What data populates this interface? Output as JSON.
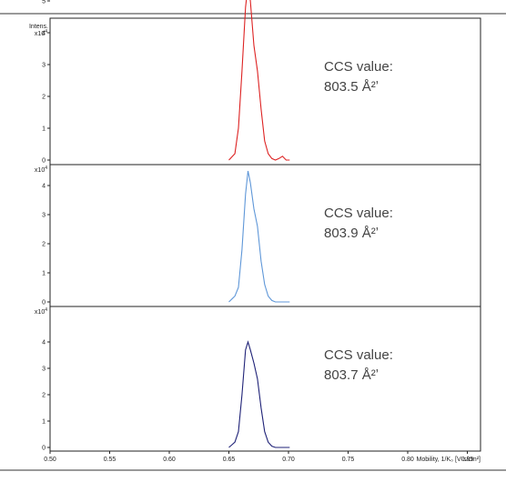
{
  "chart_data": {
    "type": "line",
    "xlabel": "Mobility, 1/K₀ [V·s/cm²]",
    "ylabel": "Intens.",
    "y_multiplier": "x10",
    "y_multiplier_exp": "4",
    "xlim": [
      0.5,
      0.7
    ],
    "x_ticks": [
      "0.50",
      "0.55",
      "0.60",
      "0.65",
      "0.70",
      "0.75",
      "0.80",
      "0.85"
    ],
    "panels": [
      {
        "color": "#dd2222",
        "ylim": [
          0,
          5.7
        ],
        "y_ticks": [
          "0",
          "1",
          "2",
          "3",
          "4",
          "5"
        ],
        "ccs_label": "CCS value:",
        "ccs_value": "803.5 Å²ʼ",
        "x": [
          0.65,
          0.655,
          0.658,
          0.661,
          0.664,
          0.666,
          0.668,
          0.671,
          0.674,
          0.677,
          0.68,
          0.683,
          0.686,
          0.689,
          0.692,
          0.695,
          0.698,
          0.701
        ],
        "y": [
          0,
          0.2,
          1.0,
          2.8,
          4.8,
          5.5,
          5.0,
          3.6,
          2.8,
          1.6,
          0.6,
          0.2,
          0.05,
          0.0,
          0.05,
          0.12,
          0.0,
          0.0
        ]
      },
      {
        "color": "#5f97d8",
        "ylim": [
          0,
          4.7
        ],
        "y_ticks": [
          "0",
          "1",
          "2",
          "3",
          "4"
        ],
        "ccs_label": "CCS value:",
        "ccs_value": "803.9 Å²ʼ",
        "x": [
          0.65,
          0.655,
          0.658,
          0.661,
          0.664,
          0.666,
          0.668,
          0.671,
          0.674,
          0.677,
          0.68,
          0.683,
          0.686,
          0.689,
          0.692,
          0.697,
          0.701
        ],
        "y": [
          0,
          0.2,
          0.5,
          1.8,
          3.7,
          4.5,
          4.1,
          3.2,
          2.6,
          1.4,
          0.6,
          0.2,
          0.05,
          0.0,
          0.0,
          0.0,
          0.0
        ]
      },
      {
        "color": "#1f2277",
        "ylim": [
          0,
          4.7
        ],
        "y_ticks": [
          "0",
          "1",
          "2",
          "3",
          "4"
        ],
        "ccs_label": "CCS value:",
        "ccs_value": "803.7 Å²ʼ",
        "x": [
          0.65,
          0.655,
          0.658,
          0.661,
          0.664,
          0.666,
          0.668,
          0.671,
          0.674,
          0.677,
          0.68,
          0.683,
          0.686,
          0.689,
          0.692,
          0.697,
          0.701
        ],
        "y": [
          0,
          0.2,
          0.6,
          2.0,
          3.7,
          4.0,
          3.7,
          3.2,
          2.6,
          1.5,
          0.6,
          0.2,
          0.05,
          0.0,
          0.0,
          0.0,
          0.0
        ]
      }
    ],
    "grid": false
  }
}
